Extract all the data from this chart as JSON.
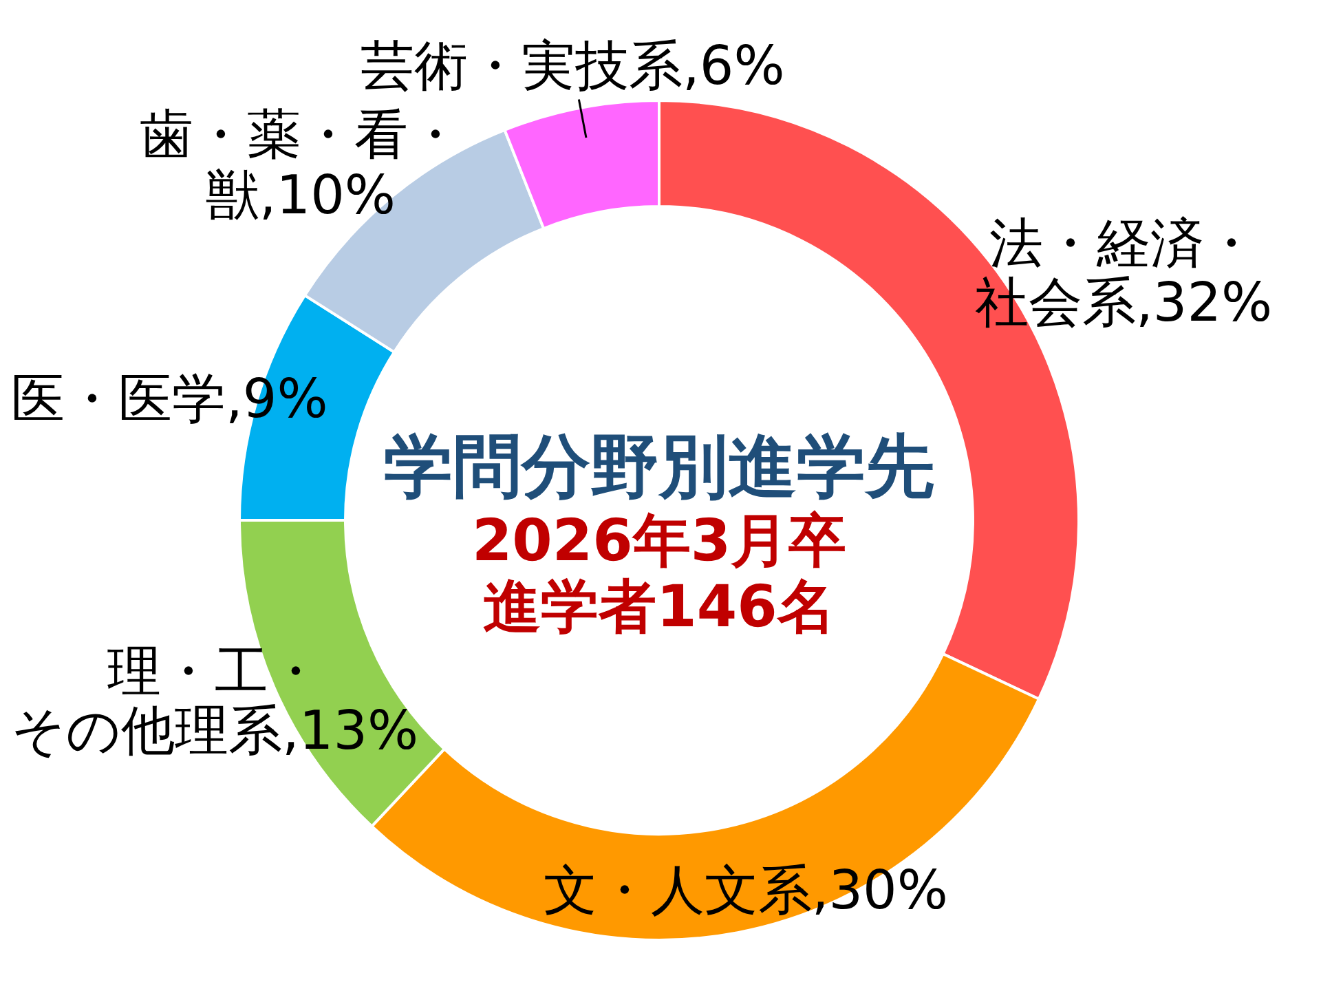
{
  "chart_data": {
    "type": "donut",
    "title": "学問分野別進学先",
    "subtitle": "2026年3月卒",
    "annotations": [
      "進学者146名"
    ],
    "categories": [
      "法・経済・社会系",
      "文・人文系",
      "理・工・その他理系",
      "医・医学",
      "歯・薬・看・獣",
      "芸術・実技系"
    ],
    "values": [
      32,
      30,
      13,
      9,
      10,
      6
    ],
    "colors": [
      "#ff5050",
      "#ff9900",
      "#92d050",
      "#00b0f0",
      "#b8cce4",
      "#ff66ff"
    ],
    "value_labels": [
      "32%",
      "30%",
      "13%",
      "9%",
      "10%",
      "6%"
    ]
  }
}
